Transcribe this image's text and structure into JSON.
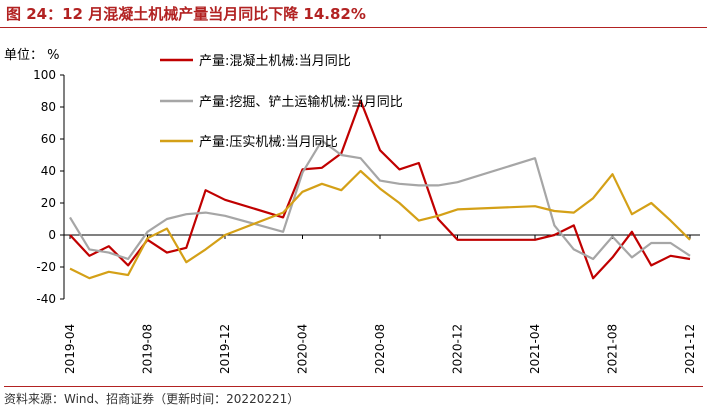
{
  "title": "图 24：12 月混凝土机械产量当月同比下降 14.82%",
  "unit_label": "单位： %",
  "source": "资料来源：Wind、招商证券（更新时间：20220221）",
  "chart_data": {
    "type": "line",
    "ylim": [
      -40,
      100
    ],
    "y_ticks": [
      "100",
      "80",
      "60",
      "40",
      "20",
      "0",
      "-20",
      "-40"
    ],
    "x_tick_labels": [
      "2019-04",
      "2019-08",
      "2019-12",
      "2020-04",
      "2020-08",
      "2020-12",
      "2021-04",
      "2021-08",
      "2021-12"
    ],
    "x": [
      "2019-04",
      "2019-05",
      "2019-06",
      "2019-07",
      "2019-08",
      "2019-09",
      "2019-10",
      "2019-11",
      "2019-12",
      "2020-03",
      "2020-04",
      "2020-05",
      "2020-06",
      "2020-07",
      "2020-08",
      "2020-09",
      "2020-10",
      "2020-11",
      "2020-12",
      "2021-04",
      "2021-05",
      "2021-06",
      "2021-07",
      "2021-08",
      "2021-09",
      "2021-10",
      "2021-11",
      "2021-12"
    ],
    "series": [
      {
        "name": "产量:混凝土机械:当月同比",
        "color": "#c00000",
        "values": [
          0,
          -13,
          -7,
          -19,
          -3,
          -11,
          -8,
          28,
          22,
          11,
          41,
          42,
          51,
          84,
          53,
          41,
          45,
          10,
          -3,
          -3,
          0,
          6,
          -27,
          -14,
          2,
          -19,
          -13,
          -15
        ]
      },
      {
        "name": "产量:挖掘、铲土运输机械:当月同比",
        "color": "#a6a6a6",
        "values": [
          11,
          -9,
          -11,
          -15,
          2,
          10,
          13,
          14,
          12,
          2,
          39,
          59,
          50,
          48,
          34,
          32,
          31,
          31,
          33,
          48,
          6,
          -9,
          -15,
          -1,
          -14,
          -5,
          -5,
          -13
        ]
      },
      {
        "name": "产量:压实机械:当月同比",
        "color": "#d4a017",
        "values": [
          -21,
          -27,
          -23,
          -25,
          -2,
          4,
          -17,
          -9,
          0,
          14,
          27,
          32,
          28,
          40,
          29,
          20,
          9,
          12,
          16,
          18,
          15,
          14,
          23,
          38,
          13,
          20,
          9,
          -3
        ]
      }
    ]
  }
}
